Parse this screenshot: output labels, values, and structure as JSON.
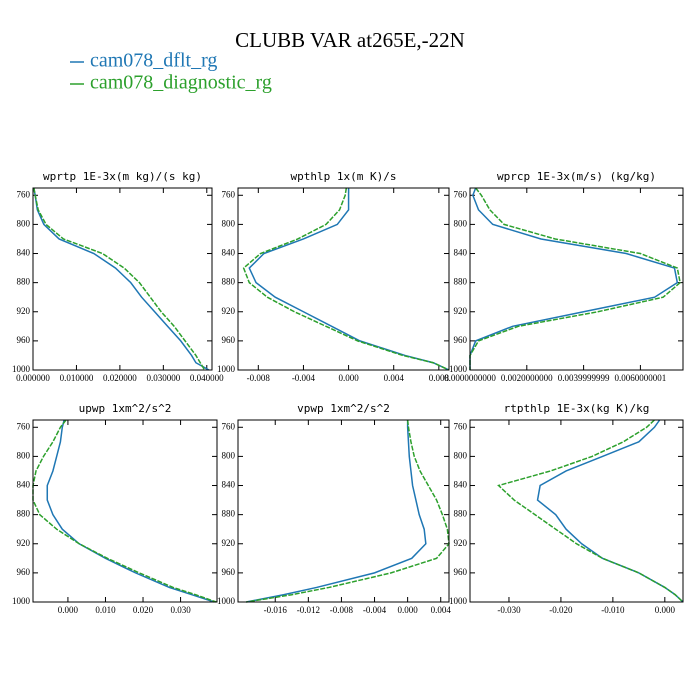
{
  "title": "CLUBB VAR at265E,-22N",
  "legend": [
    {
      "name": "cam078_dflt_rg",
      "color": "#1f77b4"
    },
    {
      "name": "cam078_diagnostic_rg",
      "color": "#2ca02c"
    }
  ],
  "chart_data": [
    {
      "type": "line",
      "title": "wprtp  1E-3x(m kg)/(s kg)",
      "y": [
        750,
        760,
        780,
        800,
        820,
        840,
        860,
        880,
        900,
        920,
        940,
        960,
        980,
        990,
        1000
      ],
      "ylim": [
        1000,
        750
      ],
      "yticks": [
        760,
        800,
        840,
        880,
        920,
        960,
        1000
      ],
      "xlim": [
        0,
        0.0412
      ],
      "xticks": [
        {
          "value": 0,
          "label": "0.000000"
        },
        {
          "value": 0.01,
          "label": "0.010000"
        },
        {
          "value": 0.02,
          "label": "0.020000"
        },
        {
          "value": 0.03,
          "label": "0.030000"
        },
        {
          "value": 0.04,
          "label": "0.040000"
        }
      ],
      "series": [
        {
          "color": "#1f77b4",
          "values": [
            0.0002,
            0.0005,
            0.001,
            0.0025,
            0.006,
            0.014,
            0.019,
            0.0225,
            0.025,
            0.028,
            0.031,
            0.034,
            0.0365,
            0.0375,
            0.0405
          ]
        },
        {
          "color": "#2ca02c",
          "values": [
            0.0002,
            0.0005,
            0.0012,
            0.003,
            0.007,
            0.016,
            0.021,
            0.0245,
            0.027,
            0.0295,
            0.0325,
            0.035,
            0.0375,
            0.0385,
            0.0395
          ]
        }
      ]
    },
    {
      "type": "line",
      "title": "wpthlp  1x(m K)/s",
      "y": [
        750,
        760,
        780,
        800,
        820,
        840,
        860,
        880,
        900,
        920,
        940,
        960,
        980,
        990,
        1000
      ],
      "ylim": [
        1000,
        750
      ],
      "yticks": [
        760,
        800,
        840,
        880,
        920,
        960,
        1000
      ],
      "xlim": [
        -0.0098,
        0.0089
      ],
      "xticks": [
        -0.008,
        -0.004,
        {
          "value": 0,
          "label": "0.000"
        },
        0.004,
        0.008
      ],
      "series": [
        {
          "color": "#1f77b4",
          "values": [
            0,
            0,
            0,
            -0.001,
            -0.004,
            -0.0075,
            -0.0088,
            -0.0082,
            -0.0065,
            -0.004,
            -0.0015,
            0.001,
            0.005,
            0.0075,
            0.0089
          ]
        },
        {
          "color": "#2ca02c",
          "values": [
            -0.0002,
            -0.0003,
            -0.0008,
            -0.002,
            -0.0045,
            -0.0078,
            -0.0093,
            -0.0088,
            -0.0072,
            -0.0048,
            -0.002,
            0.0008,
            0.0048,
            0.0075,
            0.0089
          ]
        }
      ]
    },
    {
      "type": "line",
      "title": "wprcp  1E-3x(m/s) (kg/kg)",
      "y": [
        750,
        760,
        780,
        800,
        820,
        840,
        860,
        880,
        900,
        920,
        940,
        960,
        980,
        990,
        1000
      ],
      "ylim": [
        1000,
        750
      ],
      "yticks": [
        760,
        800,
        840,
        880,
        920,
        960,
        1000
      ],
      "xlim": [
        0,
        0.0075
      ],
      "xticks": [
        {
          "value": 0,
          "label": "0.0000000000"
        },
        {
          "value": 0.002,
          "label": "0.0020000000"
        },
        {
          "value": 0.004,
          "label": "0.0039999999"
        },
        {
          "value": 0.006,
          "label": "0.0060000001"
        }
      ],
      "series": [
        {
          "color": "#1f77b4",
          "values": [
            0.0002,
            0.0001,
            0.0003,
            0.0008,
            0.0025,
            0.0055,
            0.0072,
            0.0073,
            0.0065,
            0.004,
            0.0015,
            0.0002,
            0,
            0,
            0
          ]
        },
        {
          "color": "#2ca02c",
          "values": [
            0.0002,
            0.0004,
            0.0007,
            0.0012,
            0.003,
            0.006,
            0.0073,
            0.0074,
            0.0068,
            0.0045,
            0.0017,
            0.0003,
            0,
            0,
            0
          ]
        }
      ]
    },
    {
      "type": "line",
      "title": "upwp  1xm^2/s^2",
      "y": [
        750,
        760,
        780,
        800,
        820,
        840,
        860,
        880,
        900,
        920,
        940,
        960,
        980,
        990,
        1000
      ],
      "ylim": [
        1000,
        750
      ],
      "yticks": [
        760,
        800,
        840,
        880,
        920,
        960,
        1000
      ],
      "xlim": [
        -0.0093,
        0.0397
      ],
      "xticks": [
        {
          "value": 0,
          "label": "0.000"
        },
        {
          "value": 0.01,
          "label": "0.010"
        },
        {
          "value": 0.02,
          "label": "0.020"
        },
        {
          "value": 0.03,
          "label": "0.030"
        }
      ],
      "series": [
        {
          "color": "#1f77b4",
          "values": [
            -0.001,
            -0.0015,
            -0.002,
            -0.003,
            -0.004,
            -0.0055,
            -0.0055,
            -0.004,
            -0.0015,
            0.003,
            0.01,
            0.018,
            0.027,
            0.033,
            0.039
          ]
        },
        {
          "color": "#2ca02c",
          "values": [
            -0.0005,
            -0.002,
            -0.004,
            -0.0065,
            -0.0085,
            -0.0093,
            -0.0093,
            -0.0075,
            -0.003,
            0.003,
            0.0105,
            0.019,
            0.028,
            0.034,
            0.0395
          ]
        }
      ]
    },
    {
      "type": "line",
      "title": "vpwp  1xm^2/s^2",
      "y": [
        750,
        760,
        780,
        800,
        820,
        840,
        860,
        880,
        900,
        920,
        940,
        960,
        980,
        990,
        1000
      ],
      "ylim": [
        1000,
        750
      ],
      "yticks": [
        760,
        800,
        840,
        880,
        920,
        960,
        1000
      ],
      "xlim": [
        -0.0205,
        0.005
      ],
      "xticks": [
        -0.016,
        -0.012,
        -0.008,
        -0.004,
        {
          "value": 0,
          "label": "0.000"
        },
        0.004
      ],
      "series": [
        {
          "color": "#1f77b4",
          "values": [
            0,
            0,
            0.0001,
            0.0002,
            0.0004,
            0.0006,
            0.001,
            0.0014,
            0.002,
            0.0022,
            0.0005,
            -0.004,
            -0.011,
            -0.015,
            -0.0195
          ]
        },
        {
          "color": "#2ca02c",
          "values": [
            0,
            0.0001,
            0.0004,
            0.0008,
            0.0015,
            0.0025,
            0.0035,
            0.0042,
            0.0048,
            0.005,
            0.0035,
            -0.002,
            -0.0095,
            -0.014,
            -0.0195
          ]
        }
      ]
    },
    {
      "type": "line",
      "title": "rtpthlp  1E-3x(kg K)/kg",
      "y": [
        750,
        760,
        780,
        800,
        820,
        840,
        860,
        880,
        900,
        920,
        940,
        960,
        980,
        990,
        1000
      ],
      "ylim": [
        1000,
        750
      ],
      "yticks": [
        760,
        800,
        840,
        880,
        920,
        960,
        1000
      ],
      "xlim": [
        -0.0375,
        0.0035
      ],
      "xticks": [
        {
          "value": -0.03,
          "label": "-0.030"
        },
        {
          "value": -0.02,
          "label": "-0.020"
        },
        {
          "value": -0.01,
          "label": "-0.010"
        },
        {
          "value": 0,
          "label": "0.000"
        }
      ],
      "series": [
        {
          "color": "#1f77b4",
          "values": [
            -0.001,
            -0.002,
            -0.005,
            -0.012,
            -0.019,
            -0.024,
            -0.0245,
            -0.021,
            -0.019,
            -0.016,
            -0.012,
            -0.005,
            0,
            0.002,
            0.0035
          ]
        },
        {
          "color": "#2ca02c",
          "values": [
            -0.002,
            -0.0035,
            -0.008,
            -0.014,
            -0.022,
            -0.032,
            -0.029,
            -0.025,
            -0.021,
            -0.017,
            -0.012,
            -0.005,
            0,
            0.002,
            0.0035
          ]
        }
      ]
    }
  ]
}
